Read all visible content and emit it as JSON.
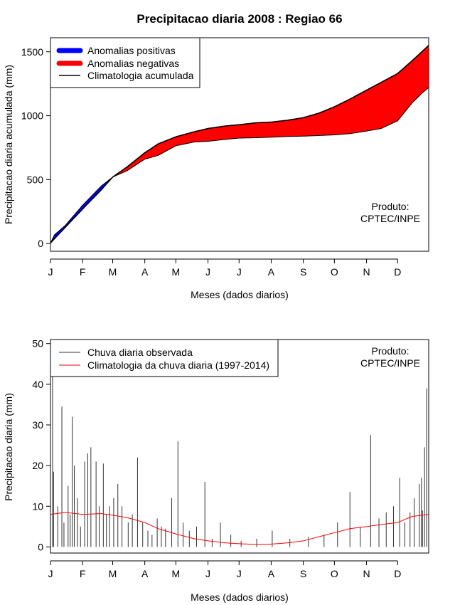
{
  "title": "Precipitacao diaria 2008 : Regiao 66",
  "credit": {
    "line1": "Produto:",
    "line2": "CPTEC/INPE"
  },
  "colors": {
    "positive": "#0000ff",
    "negative": "#ff0000",
    "climatology_cumulative": "#000000",
    "observed_daily": "#333333",
    "climatology_daily": "#ff0000"
  },
  "chart_data": [
    {
      "type": "area",
      "title": "Precipitacao diaria 2008 : Regiao 66",
      "xlabel": "Meses (dados diarios)",
      "ylabel": "Precipitacao diaria acumulada (mm)",
      "month_ticks": [
        "J",
        "F",
        "M",
        "A",
        "M",
        "J",
        "J",
        "A",
        "S",
        "O",
        "N",
        "D"
      ],
      "month_start_days": [
        1,
        32,
        61,
        92,
        122,
        153,
        183,
        214,
        245,
        275,
        306,
        336
      ],
      "yticks": [
        0,
        500,
        1000,
        1500
      ],
      "xlim": [
        1,
        366
      ],
      "ylim": [
        -60,
        1610
      ],
      "legend": [
        {
          "label": "Anomalias positivas",
          "style": "thick",
          "color": "#0000ff"
        },
        {
          "label": "Anomalias negativas",
          "style": "thick",
          "color": "#ff0000"
        },
        {
          "label": "Climatologia acumulada",
          "style": "line",
          "color": "#000000"
        }
      ],
      "climatology_cumulative": {
        "days": [
          1,
          15,
          32,
          50,
          61,
          75,
          92,
          105,
          122,
          140,
          153,
          170,
          183,
          200,
          214,
          230,
          245,
          260,
          275,
          290,
          306,
          320,
          336,
          350,
          366
        ],
        "values": [
          5,
          125,
          270,
          420,
          520,
          600,
          710,
          780,
          835,
          875,
          900,
          920,
          930,
          945,
          950,
          965,
          985,
          1020,
          1070,
          1130,
          1200,
          1260,
          1330,
          1430,
          1550
        ]
      },
      "observed_cumulative": {
        "days": [
          1,
          5,
          15,
          32,
          50,
          61,
          75,
          92,
          105,
          122,
          140,
          153,
          170,
          183,
          200,
          214,
          230,
          245,
          260,
          275,
          290,
          306,
          320,
          336,
          350,
          360,
          366
        ],
        "values": [
          5,
          70,
          140,
          300,
          450,
          520,
          570,
          660,
          690,
          765,
          795,
          800,
          815,
          825,
          828,
          832,
          838,
          840,
          845,
          850,
          860,
          880,
          900,
          960,
          1100,
          1180,
          1220
        ]
      }
    },
    {
      "type": "line",
      "xlabel": "Meses (dados diarios)",
      "ylabel": "Precipitacao diaria (mm)",
      "month_ticks": [
        "J",
        "F",
        "M",
        "A",
        "M",
        "J",
        "J",
        "A",
        "S",
        "O",
        "N",
        "D"
      ],
      "month_start_days": [
        1,
        32,
        61,
        92,
        122,
        153,
        183,
        214,
        245,
        275,
        306,
        336
      ],
      "yticks": [
        0,
        10,
        20,
        30,
        40,
        50
      ],
      "xlim": [
        1,
        366
      ],
      "ylim": [
        -1.5,
        51
      ],
      "legend": [
        {
          "label": "Chuva diaria observada",
          "color": "#333333"
        },
        {
          "label": "Climatologia da chuva diaria (1997-2014)",
          "color": "#ff0000"
        }
      ],
      "climatology_daily": {
        "days": [
          1,
          15,
          32,
          50,
          61,
          75,
          92,
          105,
          122,
          140,
          153,
          170,
          183,
          200,
          214,
          230,
          245,
          260,
          275,
          290,
          306,
          320,
          336,
          350,
          366
        ],
        "values": [
          8,
          8.5,
          8,
          8.2,
          7.8,
          7.2,
          6,
          4.5,
          3.2,
          2,
          1.5,
          1.0,
          0.8,
          0.6,
          0.7,
          1.0,
          1.5,
          2.5,
          3.5,
          4.5,
          5.0,
          5.5,
          6,
          7.5,
          8
        ]
      },
      "observed_daily": {
        "days": [
          3,
          4,
          8,
          12,
          14,
          18,
          20,
          22,
          24,
          27,
          30,
          34,
          37,
          40,
          45,
          48,
          52,
          55,
          58,
          62,
          66,
          70,
          76,
          80,
          85,
          90,
          95,
          99,
          104,
          108,
          112,
          118,
          124,
          129,
          135,
          142,
          150,
          157,
          165,
          175,
          185,
          200,
          215,
          232,
          250,
          265,
          278,
          290,
          300,
          310,
          318,
          325,
          332,
          338,
          343,
          348,
          352,
          357,
          359,
          360,
          362,
          364
        ],
        "values": [
          43,
          18.5,
          10,
          34.5,
          6,
          15,
          8,
          32,
          20,
          12,
          5,
          21,
          23,
          24.5,
          21,
          10,
          20.5,
          8,
          10,
          12,
          15.5,
          10,
          6,
          8,
          22,
          6,
          4,
          3,
          7,
          5,
          4.5,
          12,
          26,
          6,
          4,
          5,
          16,
          2,
          6,
          3,
          1.5,
          2,
          4,
          2,
          2.5,
          3,
          6,
          13.5,
          5,
          27.5,
          7,
          8.5,
          10,
          17,
          6,
          8.5,
          12,
          15.5,
          17,
          9,
          24.5,
          39
        ]
      }
    }
  ]
}
